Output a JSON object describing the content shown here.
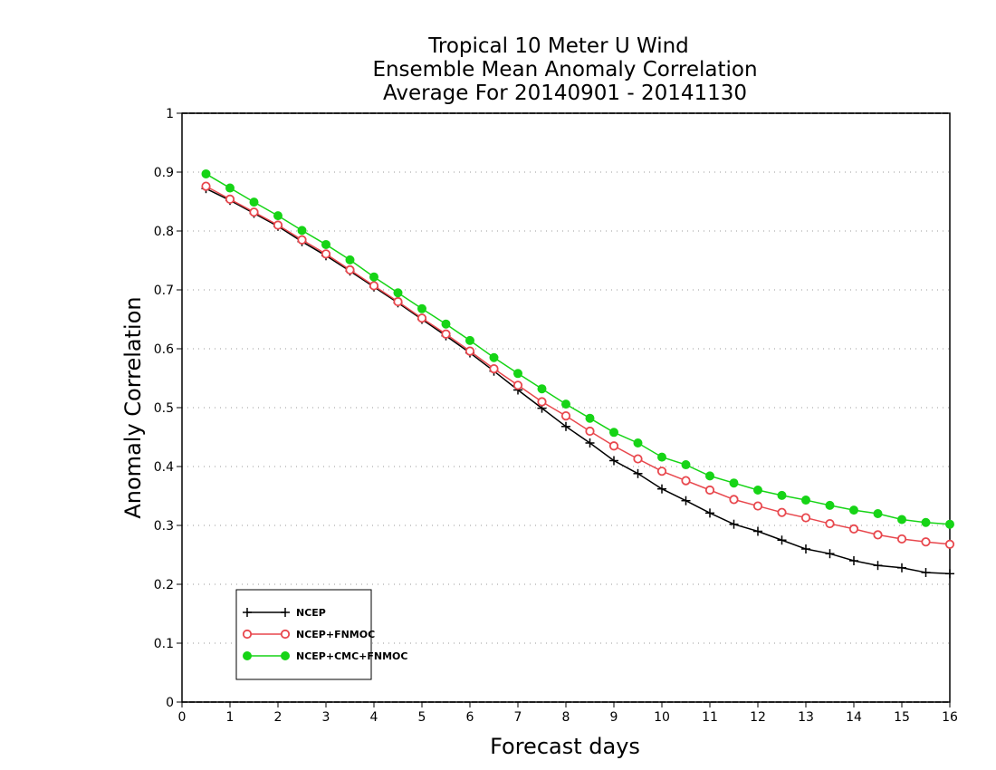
{
  "chart_data": {
    "type": "line",
    "title": "Tropical 10 Meter U Wind",
    "subtitle_1": "Ensemble Mean Anomaly Correlation",
    "subtitle_2": "Average For 20140901 - 20141130",
    "xlabel": "Forecast days",
    "ylabel": "Anomaly Correlation",
    "xlim": [
      0,
      16
    ],
    "ylim": [
      0,
      1
    ],
    "x_ticks": [
      "0",
      "1",
      "2",
      "3",
      "4",
      "5",
      "6",
      "7",
      "8",
      "9",
      "10",
      "11",
      "12",
      "13",
      "14",
      "15",
      "16"
    ],
    "y_ticks": [
      "0",
      "0.1",
      "0.2",
      "0.3",
      "0.4",
      "0.5",
      "0.6",
      "0.7",
      "0.8",
      "0.9",
      "1"
    ],
    "grid": "horizontal dotted",
    "legend_position": "bottom-left",
    "x": [
      0.5,
      1,
      1.5,
      2,
      2.5,
      3,
      3.5,
      4,
      4.5,
      5,
      5.5,
      6,
      6.5,
      7,
      7.5,
      8,
      8.5,
      9,
      9.5,
      10,
      10.5,
      11,
      11.5,
      12,
      12.5,
      13,
      13.5,
      14,
      14.5,
      15,
      15.5,
      16
    ],
    "series": [
      {
        "name": "NCEP",
        "color": "#000000",
        "marker": "plus",
        "values": [
          0.872,
          0.852,
          0.83,
          0.808,
          0.782,
          0.758,
          0.732,
          0.705,
          0.678,
          0.65,
          0.622,
          0.593,
          0.562,
          0.53,
          0.499,
          0.468,
          0.44,
          0.41,
          0.388,
          0.362,
          0.342,
          0.321,
          0.302,
          0.29,
          0.275,
          0.26,
          0.252,
          0.24,
          0.232,
          0.228,
          0.22,
          0.218
        ]
      },
      {
        "name": "NCEP+FNMOC",
        "color": "#e8474d",
        "marker": "open-circle",
        "values": [
          0.876,
          0.854,
          0.832,
          0.81,
          0.785,
          0.761,
          0.734,
          0.707,
          0.68,
          0.652,
          0.625,
          0.596,
          0.566,
          0.538,
          0.51,
          0.486,
          0.46,
          0.435,
          0.413,
          0.392,
          0.376,
          0.36,
          0.344,
          0.333,
          0.322,
          0.313,
          0.303,
          0.294,
          0.284,
          0.277,
          0.272,
          0.268
        ]
      },
      {
        "name": "NCEP+CMC+FNMOC",
        "color": "#16d416",
        "marker": "filled-circle",
        "values": [
          0.897,
          0.873,
          0.849,
          0.826,
          0.801,
          0.777,
          0.751,
          0.722,
          0.695,
          0.668,
          0.642,
          0.614,
          0.585,
          0.558,
          0.532,
          0.506,
          0.482,
          0.458,
          0.44,
          0.416,
          0.403,
          0.384,
          0.372,
          0.36,
          0.351,
          0.343,
          0.334,
          0.326,
          0.32,
          0.31,
          0.305,
          0.302
        ]
      }
    ]
  }
}
